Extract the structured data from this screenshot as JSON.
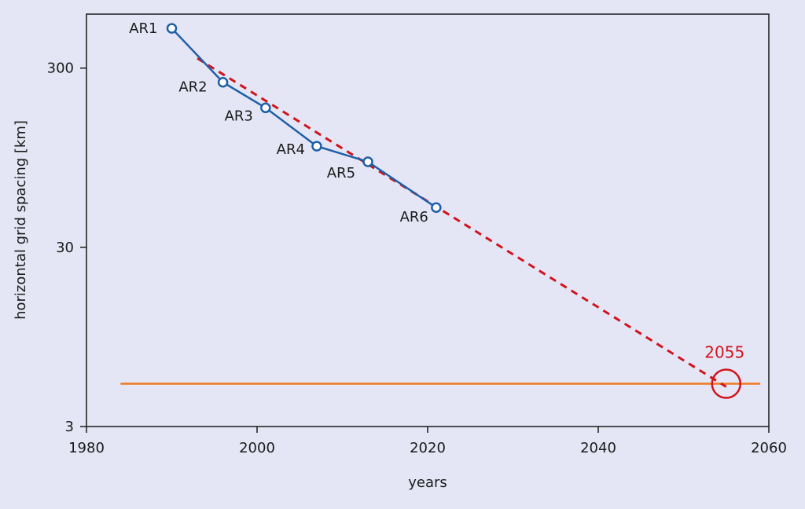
{
  "chart_data": {
    "type": "line",
    "title": "",
    "xlabel": "years",
    "ylabel": "horizontal grid spacing [km]",
    "xlim": [
      1980,
      2060
    ],
    "ylim": [
      3,
      600
    ],
    "yscale": "log",
    "grid": false,
    "x_ticks": [
      1980,
      2000,
      2020,
      2040,
      2060
    ],
    "x_tick_labels": [
      "1980",
      "2000",
      "2020",
      "2040",
      "2060"
    ],
    "y_ticks": [
      3,
      30,
      300
    ],
    "y_tick_labels": [
      "3",
      "30",
      "300"
    ],
    "series": [
      {
        "kind": "solid-line-with-markers",
        "color": "#1f5fa8",
        "points": [
          {
            "label": "AR1",
            "x": 1990,
            "y": 500
          },
          {
            "label": "AR2",
            "x": 1996,
            "y": 250
          },
          {
            "label": "AR3",
            "x": 2001,
            "y": 180
          },
          {
            "label": "AR4",
            "x": 2007,
            "y": 110
          },
          {
            "label": "AR5",
            "x": 2013,
            "y": 90
          },
          {
            "label": "AR6",
            "x": 2021,
            "y": 50
          }
        ]
      },
      {
        "kind": "dashed-trend",
        "color": "#d0141c",
        "x": [
          1993,
          2055
        ],
        "y": [
          340,
          5
        ]
      },
      {
        "kind": "horizontal-line",
        "color": "#ee7a1e",
        "y": 5.2,
        "x": [
          1984,
          2059
        ]
      }
    ],
    "annotations": [
      {
        "text": "2055",
        "x": 2055,
        "y": 5.2,
        "color": "#d0141c",
        "marker": "circle"
      }
    ]
  }
}
